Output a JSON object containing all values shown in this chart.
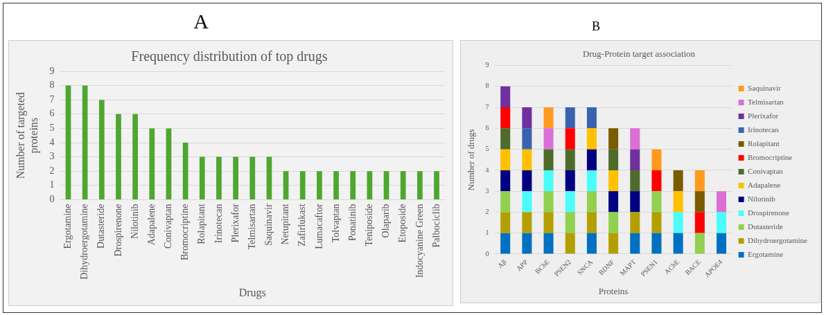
{
  "chart_data": [
    {
      "type": "bar",
      "title": "Frequency distribution of top drugs",
      "xlabel": "Drugs",
      "ylabel": "Number of targeted proteins",
      "annotations": [
        "A"
      ],
      "categories": [
        "Ergotamine",
        "Dihydroergotamine",
        "Dutasteride",
        "Drospirenone",
        "Nilotinib",
        "Adapalene",
        "Conivaptan",
        "Bromocriptine",
        "Rolapitant",
        "Irinotecan",
        "Plerixafor",
        "Telmisartan",
        "Saquinavir",
        "Netupitant",
        "Zafirlukast",
        "Lumacaftor",
        "Tolvaptan",
        "Ponatinib",
        "Teniposide",
        "Olaparib",
        "Etoposide",
        "Indocyanine Green",
        "Palbociclib"
      ],
      "values": [
        8,
        8,
        7,
        6,
        6,
        5,
        5,
        4,
        3,
        3,
        3,
        3,
        3,
        2,
        2,
        2,
        2,
        2,
        2,
        2,
        2,
        2,
        2
      ],
      "color": "#4ea72e",
      "ylim": [
        0,
        9
      ],
      "yticks": [
        0,
        1,
        2,
        3,
        4,
        5,
        6,
        7,
        8,
        9
      ],
      "grid": "y",
      "legend": false
    },
    {
      "type": "bar",
      "title": "Drug-Protein target association",
      "xlabel": "Proteins",
      "ylabel": "Number of drugs",
      "annotations": [
        "B"
      ],
      "stacked": true,
      "categories": [
        "Aβ",
        "APP",
        "BChE",
        "PSEN2",
        "SNCA",
        "BDNF",
        "MAPT",
        "PSEN1",
        "AChE",
        "BACE",
        "APOE4"
      ],
      "series": [
        {
          "name": "Ergotamine",
          "color": "#0070c0",
          "values": [
            1,
            1,
            1,
            0,
            1,
            0,
            1,
            1,
            1,
            0,
            1
          ]
        },
        {
          "name": "Dihydroergotamine",
          "color": "#b3a000",
          "values": [
            1,
            1,
            1,
            1,
            1,
            1,
            1,
            1,
            0,
            0,
            0
          ]
        },
        {
          "name": "Dutasteride",
          "color": "#92d050",
          "values": [
            1,
            0,
            1,
            1,
            1,
            1,
            0,
            1,
            0,
            1,
            0
          ]
        },
        {
          "name": "Drospirenone",
          "color": "#4cfcfc",
          "values": [
            0,
            1,
            1,
            1,
            1,
            0,
            0,
            0,
            1,
            0,
            1
          ]
        },
        {
          "name": "Nilotinib",
          "color": "#000080",
          "values": [
            1,
            1,
            0,
            1,
            1,
            1,
            1,
            0,
            0,
            0,
            0
          ]
        },
        {
          "name": "Adapalene",
          "color": "#ffc000",
          "values": [
            1,
            1,
            0,
            0,
            1,
            1,
            0,
            0,
            1,
            0,
            0
          ]
        },
        {
          "name": "Conivaptan",
          "color": "#4f6b2c",
          "values": [
            1,
            0,
            1,
            1,
            0,
            1,
            1,
            0,
            0,
            0,
            0
          ]
        },
        {
          "name": "Bromocriptine",
          "color": "#ff0000",
          "values": [
            1,
            0,
            0,
            1,
            0,
            0,
            0,
            1,
            0,
            1,
            0
          ]
        },
        {
          "name": "Rolapitant",
          "color": "#7a5c00",
          "values": [
            0,
            0,
            0,
            0,
            0,
            1,
            0,
            0,
            1,
            1,
            0
          ]
        },
        {
          "name": "Irinotecan",
          "color": "#3a62b0",
          "values": [
            0,
            1,
            0,
            1,
            1,
            0,
            0,
            0,
            0,
            0,
            0
          ]
        },
        {
          "name": "Plerixafor",
          "color": "#7030a0",
          "values": [
            1,
            1,
            0,
            0,
            0,
            0,
            1,
            0,
            0,
            0,
            0
          ]
        },
        {
          "name": "Telmisartan",
          "color": "#da70d6",
          "values": [
            0,
            0,
            1,
            0,
            0,
            0,
            1,
            0,
            0,
            0,
            1
          ]
        },
        {
          "name": "Saquinavir",
          "color": "#ff9a20",
          "values": [
            0,
            0,
            1,
            0,
            0,
            0,
            0,
            1,
            0,
            1,
            0
          ]
        }
      ],
      "ylim": [
        0,
        9
      ],
      "yticks": [
        0,
        1,
        2,
        3,
        4,
        5,
        6,
        7,
        8,
        9
      ],
      "grid": "y",
      "legend": "right"
    }
  ]
}
